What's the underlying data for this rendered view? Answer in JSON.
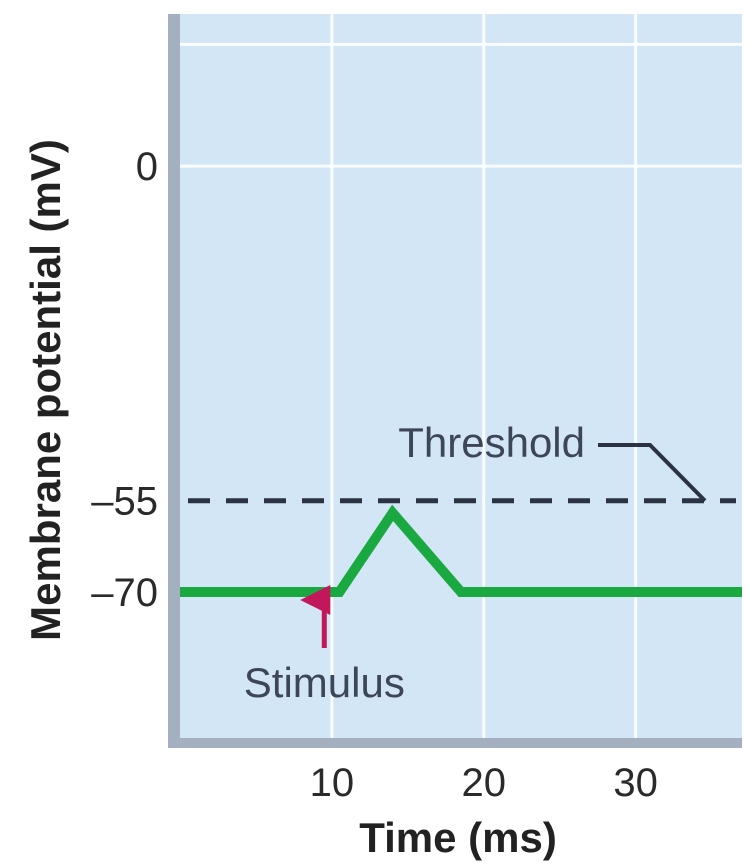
{
  "chart_data": {
    "type": "line",
    "xlabel": "Time (ms)",
    "ylabel": "Membrane potential (mV)",
    "xlim": [
      0,
      37
    ],
    "ylim": [
      -94,
      25
    ],
    "x_ticks": [
      10,
      20,
      30
    ],
    "y_ticks": [
      0,
      -55,
      -70
    ],
    "grid": true,
    "series": [
      {
        "x": [
          0,
          10.5,
          14,
          18.5,
          37
        ],
        "y": [
          -70,
          -70,
          -57,
          -70,
          -70
        ]
      }
    ],
    "threshold": {
      "value": -55,
      "label": "Threshold"
    },
    "stimulus": {
      "x": 9.5,
      "label": "Stimulus"
    },
    "colors": {
      "plot_background": "#d2e6f6",
      "frame": "#a4b0c0",
      "trace": "#1aa840",
      "threshold_line": "#2b3242",
      "stimulus_arrow": "#c2185b",
      "grid": "#ffffff"
    }
  }
}
